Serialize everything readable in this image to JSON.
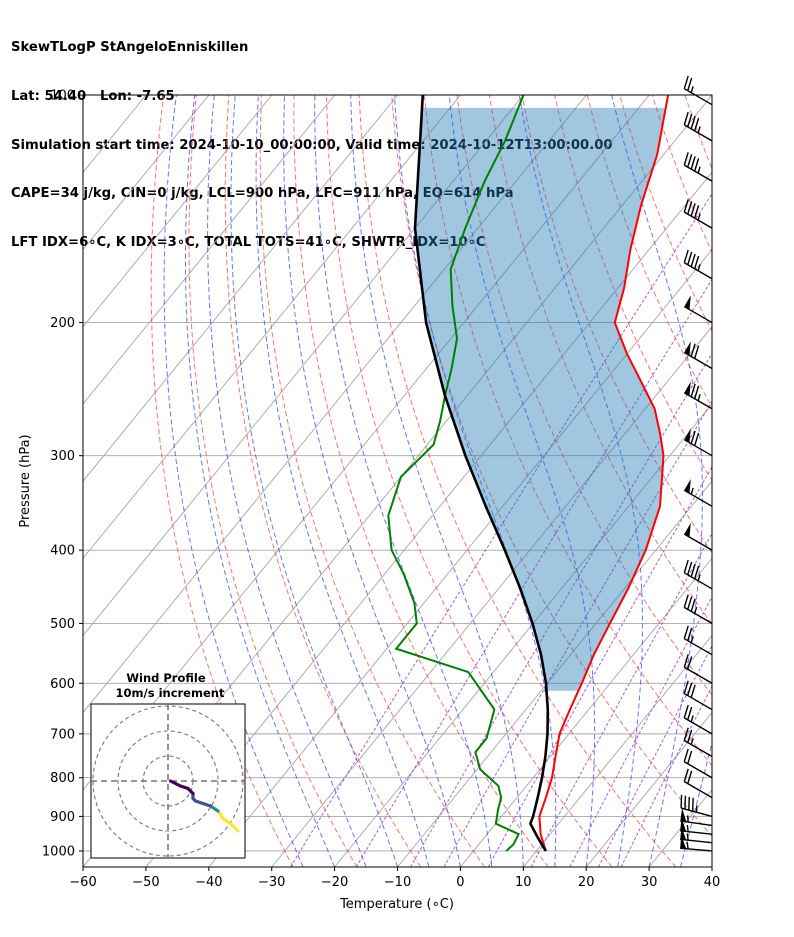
{
  "header": {
    "line1": "SkewTLogP StAngeloEnniskillen",
    "line2": "Lat: 54.40   Lon: -7.65",
    "line3": "Simulation start time: 2024-10-10_00:00:00, Valid time: 2024-10-12T13:00:00.00",
    "line4": "CAPE=34 j/kg, CIN=0 j/kg, LCL=900 hPa, LFC=911 hPa, EQ=614 hPa",
    "line5": "LFT IDX=6∘C, K IDX=3∘C, TOTAL TOTS=41∘C, SHWTR_IDX=10∘C"
  },
  "chart_data": {
    "type": "skewt",
    "xlabel": "Temperature (∘C)",
    "ylabel": "Pressure (hPa)",
    "xlim": [
      -60,
      40
    ],
    "ylim": [
      1050,
      100
    ],
    "x_ticks": [
      -60,
      -50,
      -40,
      -30,
      -20,
      -10,
      0,
      10,
      20,
      30,
      40
    ],
    "x_tick_labels": [
      "−60",
      "−50",
      "−40",
      "−30",
      "−20",
      "−10",
      "0",
      "10",
      "20",
      "30",
      "40"
    ],
    "y_ticks": [
      100,
      200,
      300,
      400,
      500,
      600,
      700,
      800,
      900,
      1000
    ],
    "y_tick_labels": [
      "100",
      "200",
      "300",
      "400",
      "500",
      "600",
      "700",
      "800",
      "900",
      "1000"
    ],
    "isotherm_temps": [
      -200,
      -190,
      -180,
      -170,
      -160,
      -150,
      -140,
      -130,
      -120,
      -110,
      -100,
      -90,
      -80,
      -70,
      -60,
      -50,
      -40,
      -30,
      -20,
      -10,
      0,
      10,
      20,
      30,
      40
    ],
    "dry_adiabat_thetas_c": [
      -30,
      -20,
      -10,
      0,
      10,
      20,
      30,
      40,
      50,
      60,
      70,
      80,
      90,
      100,
      110,
      120,
      130,
      140,
      150,
      160
    ],
    "moist_adiabat_starts_c": [
      -25,
      -20,
      -15,
      -10,
      -5,
      0,
      5,
      10,
      15,
      20,
      25,
      30,
      35
    ],
    "mixing_ratio_lines_gkg": [
      0.4,
      1,
      2,
      3,
      5,
      8,
      12,
      16,
      20
    ],
    "temperature_profile": {
      "name": "Temperature",
      "color": "#ff0000",
      "pressure": [
        1000,
        950,
        900,
        850,
        800,
        750,
        700,
        650,
        600,
        550,
        500,
        450,
        400,
        350,
        300,
        280,
        260,
        240,
        220,
        200,
        180,
        160,
        140,
        120,
        100
      ],
      "temperature": [
        11.5,
        8.5,
        6.0,
        4.6,
        3.0,
        0.8,
        -1.5,
        -3.0,
        -4.5,
        -6.3,
        -7.8,
        -9.4,
        -11.6,
        -15.0,
        -21.0,
        -24.5,
        -28.5,
        -34.0,
        -40.0,
        -46.0,
        -49.0,
        -53.0,
        -57.0,
        -61.0,
        -67.0
      ]
    },
    "dewpoint_profile": {
      "name": "Dewpoint",
      "color": "#008000",
      "pressure": [
        1000,
        980,
        950,
        920,
        880,
        850,
        820,
        780,
        740,
        710,
        650,
        580,
        540,
        500,
        470,
        430,
        400,
        360,
        320,
        290,
        270,
        250,
        230,
        210,
        190,
        170,
        150,
        130,
        115,
        100
      ],
      "temperature": [
        5.2,
        5.5,
        5.0,
        0.0,
        -1.5,
        -2.5,
        -4.5,
        -9.5,
        -12.5,
        -12.5,
        -15.0,
        -24.0,
        -38.5,
        -38.5,
        -41.5,
        -47.0,
        -52.0,
        -57.0,
        -60.0,
        -59.0,
        -61.0,
        -63.5,
        -66.0,
        -69.0,
        -74.0,
        -79.0,
        -82.0,
        -85.0,
        -87.0,
        -90.0
      ]
    },
    "parcel_profile": {
      "name": "Parcel",
      "color": "#000000",
      "pressure": [
        1000,
        960,
        920,
        900,
        850,
        800,
        750,
        700,
        650,
        600,
        550,
        500,
        450,
        400,
        350,
        300,
        250,
        200,
        150,
        100
      ],
      "temperature": [
        11.5,
        8.5,
        5.5,
        5.0,
        3.3,
        1.4,
        -0.8,
        -3.4,
        -6.5,
        -10.2,
        -14.7,
        -20.1,
        -26.5,
        -34.0,
        -42.7,
        -52.5,
        -63.5,
        -76.0,
        -90.0,
        -106.0
      ]
    },
    "cape_shading": {
      "color": "#1f77b4",
      "label": "CAPE"
    },
    "wind_barbs": [
      {
        "pressure": 1000,
        "speed_kt": 55,
        "direction_deg": 275
      },
      {
        "pressure": 975,
        "speed_kt": 55,
        "direction_deg": 276
      },
      {
        "pressure": 950,
        "speed_kt": 55,
        "direction_deg": 276
      },
      {
        "pressure": 925,
        "speed_kt": 55,
        "direction_deg": 278
      },
      {
        "pressure": 900,
        "speed_kt": 45,
        "direction_deg": 285
      },
      {
        "pressure": 850,
        "speed_kt": 20,
        "direction_deg": 300
      },
      {
        "pressure": 800,
        "speed_kt": 20,
        "direction_deg": 300
      },
      {
        "pressure": 750,
        "speed_kt": 25,
        "direction_deg": 300
      },
      {
        "pressure": 700,
        "speed_kt": 25,
        "direction_deg": 300
      },
      {
        "pressure": 650,
        "speed_kt": 30,
        "direction_deg": 300
      },
      {
        "pressure": 600,
        "speed_kt": 20,
        "direction_deg": 300
      },
      {
        "pressure": 550,
        "speed_kt": 25,
        "direction_deg": 300
      },
      {
        "pressure": 500,
        "speed_kt": 35,
        "direction_deg": 300
      },
      {
        "pressure": 450,
        "speed_kt": 45,
        "direction_deg": 300
      },
      {
        "pressure": 400,
        "speed_kt": 50,
        "direction_deg": 300
      },
      {
        "pressure": 350,
        "speed_kt": 55,
        "direction_deg": 300
      },
      {
        "pressure": 300,
        "speed_kt": 70,
        "direction_deg": 300
      },
      {
        "pressure": 260,
        "speed_kt": 75,
        "direction_deg": 300
      },
      {
        "pressure": 230,
        "speed_kt": 70,
        "direction_deg": 300
      },
      {
        "pressure": 200,
        "speed_kt": 50,
        "direction_deg": 300
      },
      {
        "pressure": 175,
        "speed_kt": 45,
        "direction_deg": 300
      },
      {
        "pressure": 150,
        "speed_kt": 45,
        "direction_deg": 300
      },
      {
        "pressure": 130,
        "speed_kt": 45,
        "direction_deg": 300
      },
      {
        "pressure": 115,
        "speed_kt": 45,
        "direction_deg": 300
      },
      {
        "pressure": 103,
        "speed_kt": 25,
        "direction_deg": 300
      }
    ],
    "hodograph": {
      "title": "Wind Profile",
      "subtitle": "10m/s increment",
      "ring_speeds_ms": [
        10,
        20,
        30
      ],
      "points": [
        {
          "u": 28,
          "v": -20,
          "color": "#fde725"
        },
        {
          "u": 25,
          "v": -17,
          "color": "#fde725"
        },
        {
          "u": 22,
          "v": -15,
          "color": "#fde725"
        },
        {
          "u": 20,
          "v": -12,
          "color": "#21918c"
        },
        {
          "u": 17,
          "v": -10,
          "color": "#3b528b"
        },
        {
          "u": 14,
          "v": -9,
          "color": "#3b528b"
        },
        {
          "u": 11,
          "v": -8,
          "color": "#3b528b"
        },
        {
          "u": 10,
          "v": -7,
          "color": "#3b528b"
        },
        {
          "u": 10,
          "v": -5,
          "color": "#440154"
        },
        {
          "u": 9,
          "v": -4,
          "color": "#440154"
        },
        {
          "u": 8,
          "v": -3,
          "color": "#440154"
        },
        {
          "u": 5,
          "v": -2,
          "color": "#440154"
        },
        {
          "u": 3,
          "v": -1,
          "color": "#440154"
        },
        {
          "u": 1,
          "v": 0,
          "color": "#440154"
        }
      ]
    }
  }
}
